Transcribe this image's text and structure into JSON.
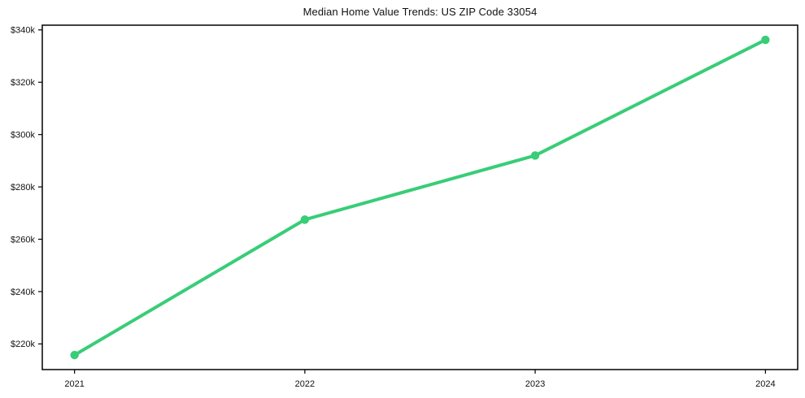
{
  "chart_data": {
    "type": "line",
    "title": "Median Home Value Trends: US ZIP Code 33054",
    "x": [
      2021,
      2022,
      2023,
      2024
    ],
    "x_tick_labels": [
      "2021",
      "2022",
      "2023",
      "2024"
    ],
    "series": [
      {
        "name": "Median Home Value",
        "values": [
          215750,
          267500,
          292000,
          336200
        ]
      }
    ],
    "y_ticks": [
      220000,
      240000,
      260000,
      280000,
      300000,
      320000,
      340000
    ],
    "y_tick_labels": [
      "$220k",
      "$240k",
      "$260k",
      "$280k",
      "$300k",
      "$320k",
      "$340k"
    ],
    "xlim": [
      2020.86,
      2024.14
    ],
    "ylim": [
      210200,
      341800
    ],
    "grid": false,
    "legend_position": "none",
    "line_color": "#38cd77",
    "marker_color": "#38cd77",
    "axis_color": "#000000",
    "tick_label_color": "#111111",
    "background_color": "#ffffff",
    "xlabel": "",
    "ylabel": ""
  }
}
